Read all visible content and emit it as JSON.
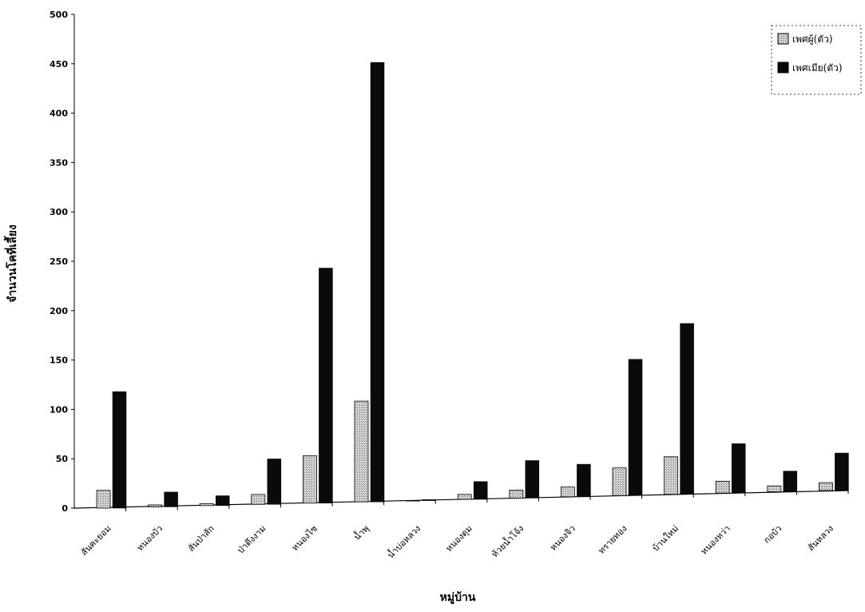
{
  "chart_data": {
    "type": "bar",
    "xlabel": "หมู่บ้าน",
    "ylabel": "จำนวนโคที่เลี้ยง",
    "ylim": [
      0,
      500
    ],
    "yticks": [
      0,
      50,
      100,
      150,
      200,
      250,
      300,
      350,
      400,
      450,
      500
    ],
    "grid": false,
    "legend_position": "top-right",
    "categories": [
      "สันคะยอม",
      "หนองบัว",
      "สันป่าสัก",
      "ป่าตึงงาม",
      "หนองไซ",
      "น้ำพุ",
      "น้ำบ่อหลวง",
      "หนองตุม",
      "ห้วยน้ำโจ้ง",
      "หนองจิว",
      "ทรายทอง",
      "บ้านใหม่",
      "หนองหว่า",
      "กอบัว",
      "สันหลวง"
    ],
    "series": [
      {
        "name": "เพศผู้(ตัว)",
        "color": "#bdbdbd",
        "pattern": "dotted-gray",
        "values": [
          18,
          2,
          2,
          10,
          48,
          102,
          0,
          5,
          8,
          10,
          28,
          38,
          12,
          6,
          8
        ]
      },
      {
        "name": "เพศเมีย(ตัว)",
        "color": "#0a0a0a",
        "pattern": "solid-black",
        "values": [
          118,
          15,
          10,
          46,
          238,
          445,
          1,
          18,
          38,
          33,
          138,
          173,
          50,
          21,
          38
        ]
      }
    ]
  }
}
